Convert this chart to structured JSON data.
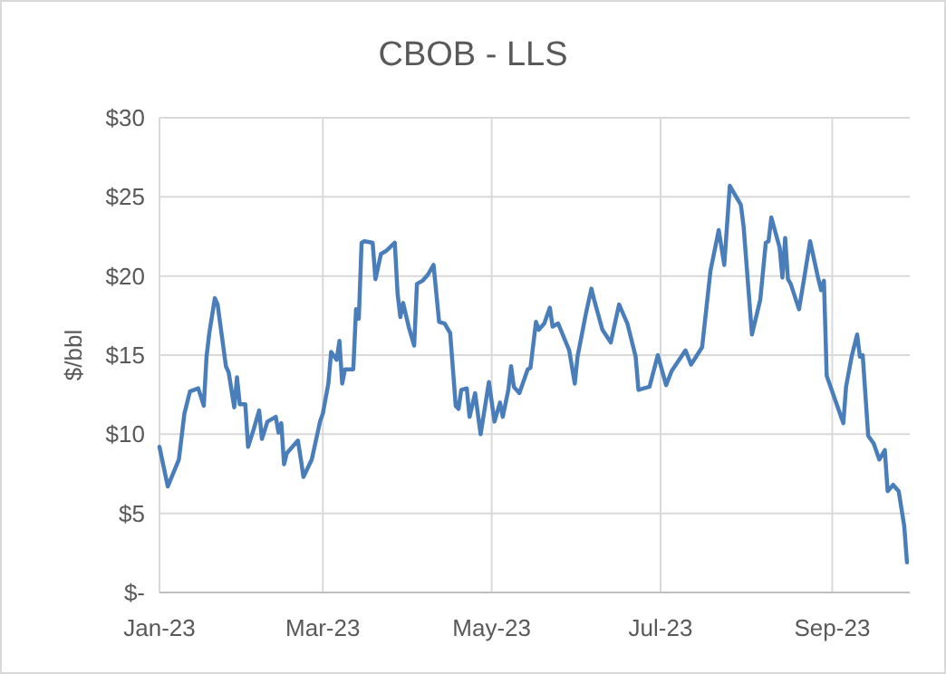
{
  "chart_data": {
    "type": "line",
    "title": "CBOB - LLS",
    "ylabel": "$/bbl",
    "grid": true,
    "marker": "none",
    "line_style": "solid",
    "xlim": [
      "2023-01-01",
      "2023-09-29"
    ],
    "xticks": [
      {
        "value": "2023-01-01",
        "label": "Jan-23"
      },
      {
        "value": "2023-03-01",
        "label": "Mar-23"
      },
      {
        "value": "2023-05-01",
        "label": "May-23"
      },
      {
        "value": "2023-07-01",
        "label": "Jul-23"
      },
      {
        "value": "2023-09-01",
        "label": "Sep-23"
      }
    ],
    "ylim": [
      0,
      30
    ],
    "yticks": [
      {
        "value": 0,
        "label": "$-"
      },
      {
        "value": 5,
        "label": "$5"
      },
      {
        "value": 10,
        "label": "$10"
      },
      {
        "value": 15,
        "label": "$15"
      },
      {
        "value": 20,
        "label": "$20"
      },
      {
        "value": 25,
        "label": "$25"
      },
      {
        "value": 30,
        "label": "$30"
      }
    ],
    "series": [
      {
        "color": "#4a7ebb",
        "x": [
          "2023-01-01",
          "2023-01-04",
          "2023-01-08",
          "2023-01-10",
          "2023-01-12",
          "2023-01-15",
          "2023-01-17",
          "2023-01-18",
          "2023-01-19",
          "2023-01-21",
          "2023-01-22",
          "2023-01-24",
          "2023-01-25",
          "2023-01-26",
          "2023-01-28",
          "2023-01-29",
          "2023-01-30",
          "2023-02-01",
          "2023-02-02",
          "2023-02-04",
          "2023-02-06",
          "2023-02-07",
          "2023-02-09",
          "2023-02-12",
          "2023-02-13",
          "2023-02-14",
          "2023-02-15",
          "2023-02-16",
          "2023-02-20",
          "2023-02-21",
          "2023-02-22",
          "2023-02-25",
          "2023-02-28",
          "2023-03-01",
          "2023-03-03",
          "2023-03-04",
          "2023-03-06",
          "2023-03-07",
          "2023-03-08",
          "2023-03-09",
          "2023-03-12",
          "2023-03-13",
          "2023-03-14",
          "2023-03-15",
          "2023-03-16",
          "2023-03-19",
          "2023-03-20",
          "2023-03-22",
          "2023-03-24",
          "2023-03-27",
          "2023-03-28",
          "2023-03-29",
          "2023-03-30",
          "2023-04-01",
          "2023-04-03",
          "2023-04-04",
          "2023-04-06",
          "2023-04-08",
          "2023-04-10",
          "2023-04-12",
          "2023-04-14",
          "2023-04-16",
          "2023-04-18",
          "2023-04-19",
          "2023-04-20",
          "2023-04-22",
          "2023-04-23",
          "2023-04-25",
          "2023-04-27",
          "2023-04-30",
          "2023-05-02",
          "2023-05-04",
          "2023-05-05",
          "2023-05-07",
          "2023-05-08",
          "2023-05-09",
          "2023-05-11",
          "2023-05-14",
          "2023-05-15",
          "2023-05-17",
          "2023-05-18",
          "2023-05-20",
          "2023-05-22",
          "2023-05-23",
          "2023-05-25",
          "2023-05-29",
          "2023-05-31",
          "2023-06-01",
          "2023-06-04",
          "2023-06-06",
          "2023-06-07",
          "2023-06-10",
          "2023-06-13",
          "2023-06-16",
          "2023-06-19",
          "2023-06-21",
          "2023-06-22",
          "2023-06-23",
          "2023-06-27",
          "2023-06-30",
          "2023-07-03",
          "2023-07-05",
          "2023-07-10",
          "2023-07-12",
          "2023-07-16",
          "2023-07-19",
          "2023-07-22",
          "2023-07-24",
          "2023-07-26",
          "2023-07-30",
          "2023-07-31",
          "2023-08-03",
          "2023-08-06",
          "2023-08-08",
          "2023-08-09",
          "2023-08-10",
          "2023-08-13",
          "2023-08-14",
          "2023-08-15",
          "2023-08-16",
          "2023-08-17",
          "2023-08-20",
          "2023-08-22",
          "2023-08-24",
          "2023-08-27",
          "2023-08-28",
          "2023-08-29",
          "2023-08-30",
          "2023-09-02",
          "2023-09-05",
          "2023-09-06",
          "2023-09-08",
          "2023-09-10",
          "2023-09-11",
          "2023-09-12",
          "2023-09-14",
          "2023-09-16",
          "2023-09-18",
          "2023-09-20",
          "2023-09-21",
          "2023-09-23",
          "2023-09-25",
          "2023-09-27",
          "2023-09-28"
        ],
        "values": [
          9.2,
          6.7,
          8.4,
          11.3,
          12.7,
          12.9,
          11.8,
          14.9,
          16.4,
          18.6,
          18.2,
          15.6,
          14.3,
          13.9,
          11.7,
          13.6,
          11.9,
          11.9,
          9.2,
          10.3,
          11.5,
          9.7,
          10.8,
          11.1,
          10.1,
          10.7,
          8.1,
          8.8,
          9.6,
          8.5,
          7.3,
          8.4,
          10.8,
          11.3,
          13.2,
          15.2,
          14.7,
          15.9,
          13.2,
          14.1,
          14.1,
          17.9,
          17.3,
          22.1,
          22.2,
          22.1,
          19.8,
          21.4,
          21.6,
          22.1,
          18.9,
          17.4,
          18.3,
          16.8,
          15.6,
          19.5,
          19.7,
          20.1,
          20.7,
          17.1,
          17.0,
          16.4,
          11.8,
          11.6,
          12.8,
          12.9,
          11.1,
          12.6,
          10.0,
          13.3,
          10.8,
          12.0,
          11.1,
          12.8,
          14.3,
          13.0,
          12.6,
          14.1,
          14.2,
          17.1,
          16.6,
          17.0,
          18.0,
          16.8,
          17.0,
          15.3,
          13.2,
          14.9,
          17.6,
          19.2,
          18.5,
          16.6,
          15.8,
          18.2,
          17.0,
          15.6,
          14.9,
          12.8,
          13.0,
          15.0,
          13.1,
          14.0,
          15.3,
          14.4,
          15.5,
          20.3,
          22.9,
          20.7,
          25.7,
          24.5,
          23.1,
          16.3,
          18.5,
          22.1,
          22.2,
          23.7,
          21.8,
          19.9,
          22.4,
          19.8,
          19.5,
          17.9,
          20.0,
          22.2,
          19.8,
          19.1,
          19.7,
          13.7,
          12.2,
          10.7,
          13.0,
          14.9,
          16.3,
          14.9,
          15.0,
          9.9,
          9.4,
          8.4,
          9.0,
          6.4,
          6.8,
          6.4,
          4.2,
          1.9
        ]
      }
    ]
  }
}
